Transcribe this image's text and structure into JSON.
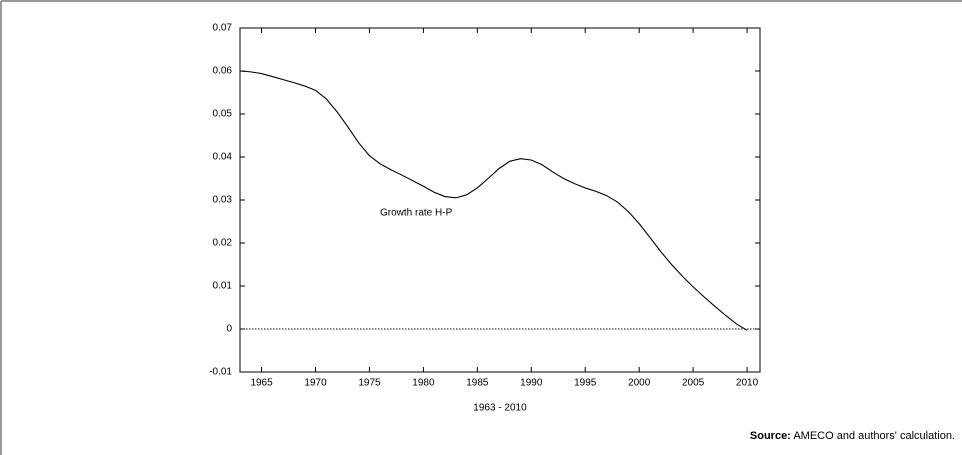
{
  "chart_data": {
    "type": "line",
    "xlabel": "1963 - 2010",
    "annotation": "Growth rate H-P",
    "source": {
      "label": "Source:",
      "text": "AMECO and authors' calculation."
    },
    "x": [
      1963,
      1964,
      1965,
      1966,
      1967,
      1968,
      1969,
      1970,
      1971,
      1972,
      1973,
      1974,
      1975,
      1976,
      1977,
      1978,
      1979,
      1980,
      1981,
      1982,
      1983,
      1984,
      1985,
      1986,
      1987,
      1988,
      1989,
      1990,
      1991,
      1992,
      1993,
      1994,
      1995,
      1996,
      1997,
      1998,
      1999,
      2000,
      2001,
      2002,
      2003,
      2004,
      2005,
      2006,
      2007,
      2008,
      2009,
      2010
    ],
    "series": [
      {
        "name": "Growth rate H-P",
        "color": "#000000",
        "values": [
          0.06,
          0.0598,
          0.0594,
          0.0587,
          0.058,
          0.0573,
          0.0565,
          0.0555,
          0.0535,
          0.0505,
          0.047,
          0.0433,
          0.0403,
          0.0384,
          0.037,
          0.0358,
          0.0345,
          0.0332,
          0.0318,
          0.0308,
          0.0305,
          0.0312,
          0.0328,
          0.035,
          0.0373,
          0.039,
          0.0396,
          0.0393,
          0.0382,
          0.0365,
          0.035,
          0.0338,
          0.0328,
          0.032,
          0.031,
          0.0295,
          0.0273,
          0.0245,
          0.0213,
          0.018,
          0.015,
          0.0123,
          0.0098,
          0.0075,
          0.0053,
          0.0032,
          0.0012,
          -0.0003
        ]
      }
    ],
    "xlim": [
      1963,
      2011.2
    ],
    "xticks": [
      1965,
      1970,
      1975,
      1980,
      1985,
      1990,
      1995,
      2000,
      2005,
      2010
    ],
    "ylim": [
      -0.01,
      0.07
    ],
    "yticks": [
      -0.01,
      0,
      0.01,
      0.02,
      0.03,
      0.04,
      0.05,
      0.06,
      0.07
    ],
    "zero_line": true
  }
}
